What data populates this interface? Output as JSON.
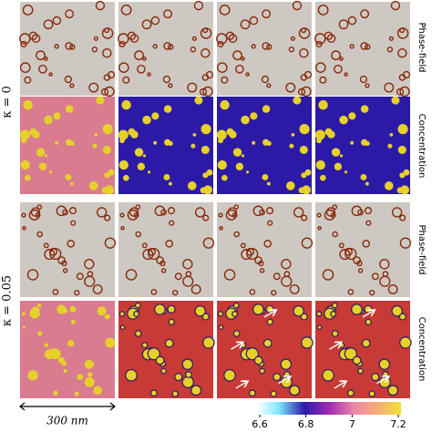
{
  "groups": [
    {
      "label": "κ = 0"
    },
    {
      "label": "κ = 0.05"
    }
  ],
  "row_labels": {
    "phase_field": "Phase-field",
    "concentration": "Concentration"
  },
  "scale_bar": "300 nm",
  "colorbar": {
    "lim": [
      6.6,
      7.2
    ],
    "ticks": [
      6.6,
      6.8,
      7,
      7.2
    ]
  }
}
